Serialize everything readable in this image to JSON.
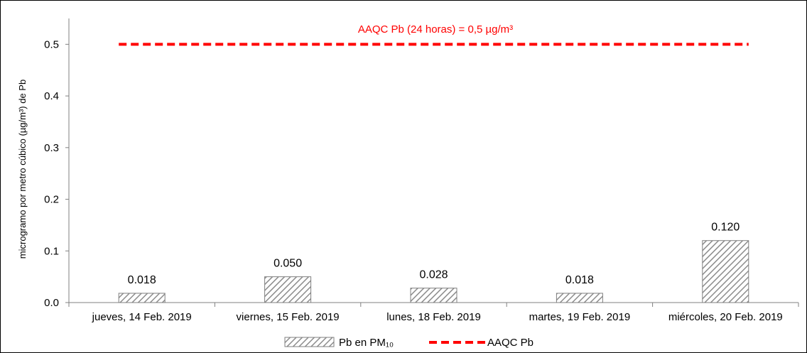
{
  "chart_data": {
    "type": "bar",
    "categories": [
      "jueves, 14 Feb. 2019",
      "viernes, 15 Feb. 2019",
      "lunes, 18 Feb. 2019",
      "martes, 19 Feb. 2019",
      "miércoles, 20 Feb. 2019"
    ],
    "series": [
      {
        "name": "Pb en PM₁₀",
        "values": [
          0.018,
          0.05,
          0.028,
          0.018,
          0.12
        ]
      }
    ],
    "data_labels": [
      "0.018",
      "0.050",
      "0.028",
      "0.018",
      "0.120"
    ],
    "reference_line": {
      "name": "AAQC Pb",
      "value": 0.5,
      "color": "#ff0000",
      "style": "dashed"
    },
    "annotation": "AAQC Pb (24 horas) = 0,5 µg/m³",
    "ylabel": "microgramo por metro cúbico (µg/m³) de Pb",
    "ylim": [
      0,
      0.55
    ],
    "yticks": [
      "0.0",
      "0.1",
      "0.2",
      "0.3",
      "0.4",
      "0.5"
    ],
    "ytick_values": [
      0,
      0.1,
      0.2,
      0.3,
      0.4,
      0.5
    ],
    "grid": false,
    "legend": {
      "placement": "bottom",
      "items": [
        {
          "label": "Pb en PM₁₀",
          "kind": "hatched-bar"
        },
        {
          "label": "AAQC Pb",
          "kind": "dashed-line"
        }
      ]
    },
    "colors": {
      "bar_hatch": "#8c8c8c",
      "bar_border": "#7f7f7f",
      "axis": "#808080",
      "reference": "#ff0000",
      "annotation_text": "#ff0000"
    }
  }
}
